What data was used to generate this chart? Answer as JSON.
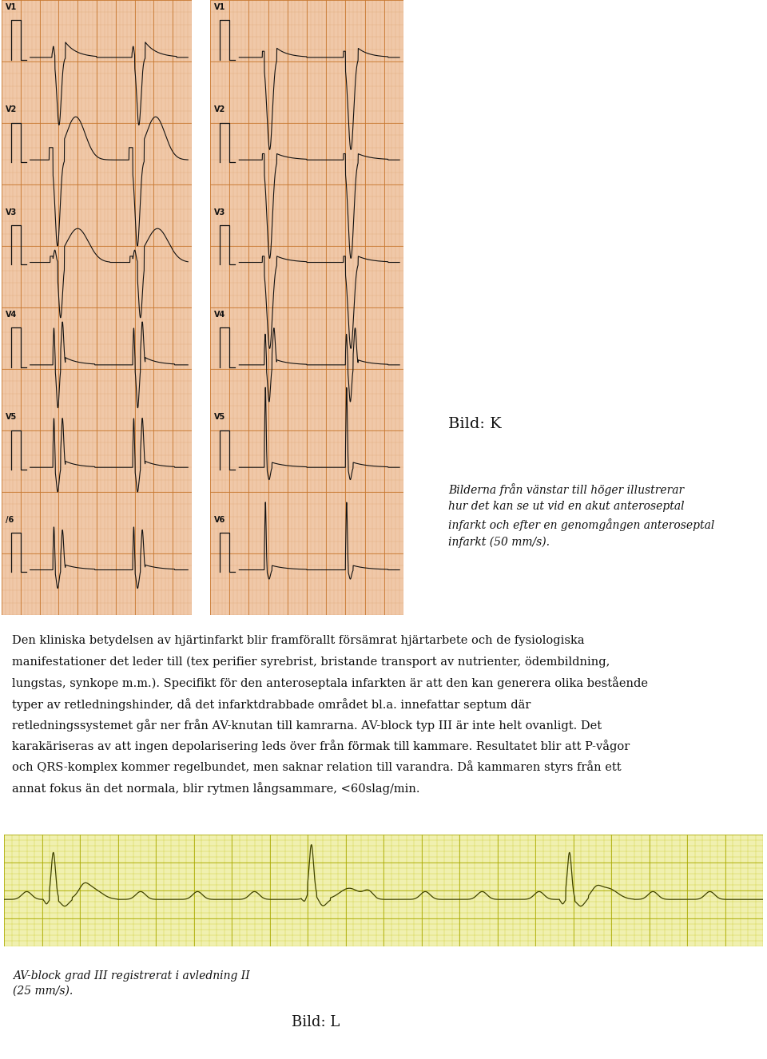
{
  "bg_color": "#ffffff",
  "ecg_bg_color": "#f0c8a8",
  "ecg_bg_color2": "#f0f0b0",
  "grid_minor_color": "#e0a878",
  "grid_major_color": "#c87830",
  "ecg_line_color": "#111111",
  "label_color": "#111111",
  "title_bild_k": "Bild: K",
  "caption_italic": "Bilderna från vänstar till höger illustrerar\nhur det kan se ut vid en akut anteroseptal\ninfarkt och efter en genomgången anteroseptal\ninfarkt (50 mm/s).",
  "body_text_line1": "Den kliniska betydelsen av hjärtinfarkt blir framförallt försämrat hjärtarbete och de fysiologiska",
  "body_text_line2": "manifestationer det leder till (tex perifier syrebrist, bristande transport av nutrienter, ödembildning,",
  "body_text_line3": "lungstas, synkope m.m.). Specifikt för den anteroseptala infarkten är att den kan generera olika bestående",
  "body_text_line4": "typer av retledningshinder, då det infarktdrabbade området bl.a. innefattar septum där",
  "body_text_line5": "retledningssystemet går ner från AV-knutan till kamrarna. AV-block typ III är inte helt ovanligt. Det",
  "body_text_line6": "karakäriseras av att ingen depolarisering leds över från förmak till kammare. Resultatet blir att P-vågor",
  "body_text_line7": "och QRS-komplex kommer regelbundet, men saknar relation till varandra. Då kammaren styrs från ett",
  "body_text_line8": "annat fokus än det normala, blir rytmen långsammare, <60slag/min.",
  "caption_bottom_italic": "AV-block grad III registrerat i avledning II\n(25 mm/s).",
  "bild_l": "Bild: L",
  "lead_labels_left": [
    "V1",
    "V2",
    "V3",
    "V4",
    "V5",
    "/6"
  ],
  "lead_labels_right": [
    "V1",
    "V2",
    "V3",
    "V4",
    "V5",
    "V6"
  ]
}
